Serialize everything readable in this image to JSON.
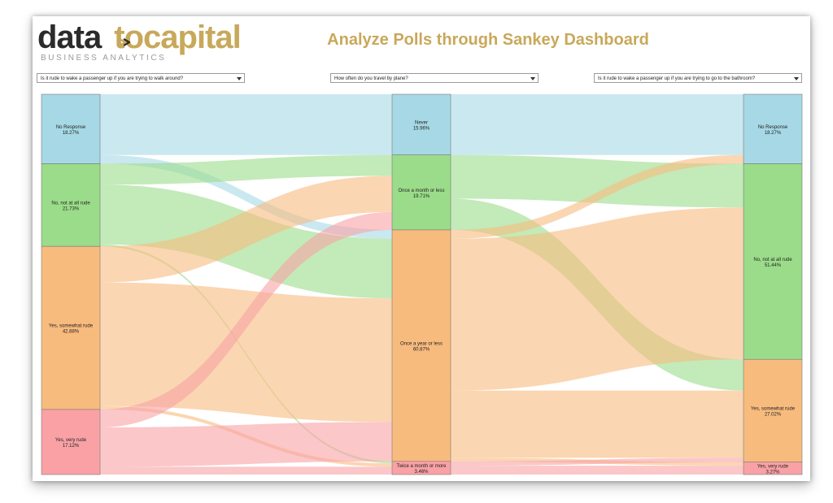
{
  "header": {
    "logo": {
      "part1": "data",
      "part2": "to",
      "part3": "capital",
      "tagline": "BUSINESS ANALYTICS",
      "arrow_icon": "arrow-right-icon"
    },
    "title": "Analyze Polls through Sankey Dashboard"
  },
  "filters": [
    {
      "selected": "Is it rude to wake a passenger up if you are trying to walk around?",
      "icon": "chevron-down-icon"
    },
    {
      "selected": "How often do you travel by plane?",
      "icon": "chevron-down-icon"
    },
    {
      "selected": "Is it rude to wake a passenger up if you are trying to go to the bathroom?",
      "icon": "chevron-down-icon"
    }
  ],
  "colors": {
    "blue": "#a6d9e5",
    "green": "#9bdc8a",
    "orange": "#f8bb7e",
    "red": "#f9a1a5",
    "brand_gold": "#c8a85a",
    "brand_dark": "#2b2b2b"
  },
  "chart_data": {
    "type": "sankey",
    "columns": [
      {
        "nodes": [
          {
            "label": "No Response",
            "pct": "18.27%",
            "value": 18.27,
            "color": "blue"
          },
          {
            "label": "No, not at all rude",
            "pct": "21.73%",
            "value": 21.73,
            "color": "green"
          },
          {
            "label": "Yes, somewhat rude",
            "pct": "42.88%",
            "value": 42.88,
            "color": "orange"
          },
          {
            "label": "Yes, very rude",
            "pct": "17.12%",
            "value": 17.12,
            "color": "red"
          }
        ]
      },
      {
        "nodes": [
          {
            "label": "Never",
            "pct": "15.96%",
            "value": 15.96,
            "color": "blue"
          },
          {
            "label": "Once a month or less",
            "pct": "19.71%",
            "value": 19.71,
            "color": "green"
          },
          {
            "label": "Once a year or less",
            "pct": "60.87%",
            "value": 60.87,
            "color": "orange"
          },
          {
            "label": "Twice a month or more",
            "pct": "3.46%",
            "value": 3.46,
            "color": "red"
          }
        ]
      },
      {
        "nodes": [
          {
            "label": "No Response",
            "pct": "18.27%",
            "value": 18.27,
            "color": "blue"
          },
          {
            "label": "No, not at all rude",
            "pct": "51.44%",
            "value": 51.44,
            "color": "green"
          },
          {
            "label": "Yes, somewhat rude",
            "pct": "27.02%",
            "value": 27.02,
            "color": "orange"
          },
          {
            "label": "Yes, very rude",
            "pct": "3.27%",
            "value": 3.27,
            "color": "red"
          }
        ]
      }
    ],
    "links_left": [
      {
        "source": 0,
        "target": 0,
        "value": 15.96
      },
      {
        "source": 0,
        "target": 2,
        "value": 2.31
      },
      {
        "source": 1,
        "target": 1,
        "value": 5.5
      },
      {
        "source": 1,
        "target": 2,
        "value": 15.7
      },
      {
        "source": 1,
        "target": 3,
        "value": 0.53
      },
      {
        "source": 2,
        "target": 1,
        "value": 9.5
      },
      {
        "source": 2,
        "target": 2,
        "value": 32.5
      },
      {
        "source": 2,
        "target": 3,
        "value": 0.88
      },
      {
        "source": 3,
        "target": 1,
        "value": 4.71
      },
      {
        "source": 3,
        "target": 2,
        "value": 10.36
      },
      {
        "source": 3,
        "target": 3,
        "value": 2.05
      }
    ],
    "links_right": [
      {
        "source": 0,
        "target": 0,
        "value": 15.96
      },
      {
        "source": 1,
        "target": 1,
        "value": 11.5
      },
      {
        "source": 1,
        "target": 2,
        "value": 8.21
      },
      {
        "source": 2,
        "target": 0,
        "value": 2.31
      },
      {
        "source": 2,
        "target": 1,
        "value": 39.94
      },
      {
        "source": 2,
        "target": 2,
        "value": 17.67
      },
      {
        "source": 2,
        "target": 3,
        "value": 0.95
      },
      {
        "source": 3,
        "target": 2,
        "value": 1.14
      },
      {
        "source": 3,
        "target": 3,
        "value": 2.32
      }
    ]
  }
}
